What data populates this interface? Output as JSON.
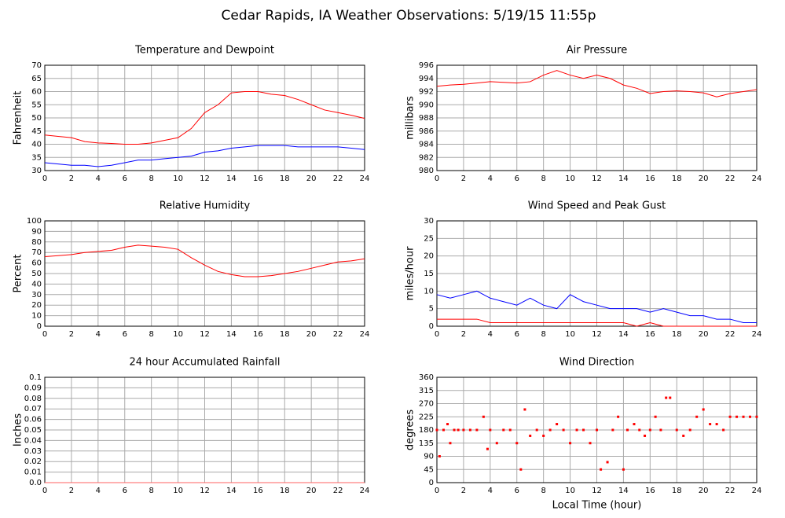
{
  "title": "Cedar Rapids, IA Weather Observations: 5/19/15 11:55p",
  "chart_data": [
    {
      "type": "line",
      "title": "Temperature and Dewpoint",
      "ylabel": "Fahrenheit",
      "grid": true,
      "x": [
        0,
        1,
        2,
        3,
        4,
        5,
        6,
        7,
        8,
        9,
        10,
        11,
        12,
        13,
        14,
        15,
        16,
        17,
        18,
        19,
        20,
        21,
        22,
        23,
        24
      ],
      "series": [
        {
          "color": "#ff0000",
          "values": [
            43.5,
            43,
            42.5,
            41,
            40.5,
            40.3,
            40,
            40,
            40.5,
            41.5,
            42.5,
            46,
            52,
            55,
            59.5,
            60,
            60,
            59,
            58.5,
            57,
            55,
            53,
            52,
            51,
            49.8
          ]
        },
        {
          "color": "#0000ff",
          "values": [
            33,
            32.5,
            32,
            32,
            31.5,
            32,
            33,
            34,
            34,
            34.5,
            35,
            35.5,
            37,
            37.5,
            38.5,
            39,
            39.5,
            39.5,
            39.5,
            39,
            39,
            39,
            39,
            38.5,
            38
          ]
        }
      ],
      "xlim": [
        0,
        24
      ],
      "xticks": [
        0,
        2,
        4,
        6,
        8,
        10,
        12,
        14,
        16,
        18,
        20,
        22,
        24
      ],
      "ylim": [
        30,
        70
      ],
      "yticks": [
        30,
        35,
        40,
        45,
        50,
        55,
        60,
        65,
        70
      ]
    },
    {
      "type": "line",
      "title": "Air Pressure",
      "ylabel": "millibars",
      "grid": true,
      "x": [
        0,
        1,
        2,
        3,
        4,
        5,
        6,
        7,
        8,
        9,
        10,
        11,
        12,
        13,
        14,
        15,
        16,
        17,
        18,
        19,
        20,
        21,
        22,
        23,
        24
      ],
      "series": [
        {
          "color": "#ff0000",
          "values": [
            992.8,
            993,
            993.1,
            993.3,
            993.5,
            993.4,
            993.3,
            993.5,
            994.5,
            995.2,
            994.5,
            994,
            994.5,
            994,
            993,
            992.5,
            991.7,
            992,
            992.1,
            992,
            991.8,
            991.2,
            991.7,
            992,
            992.3
          ]
        }
      ],
      "xlim": [
        0,
        24
      ],
      "xticks": [
        0,
        2,
        4,
        6,
        8,
        10,
        12,
        14,
        16,
        18,
        20,
        22,
        24
      ],
      "ylim": [
        980,
        996
      ],
      "yticks": [
        980,
        982,
        984,
        986,
        988,
        990,
        992,
        994,
        996
      ]
    },
    {
      "type": "line",
      "title": "Relative Humidity",
      "ylabel": "Percent",
      "grid": true,
      "x": [
        0,
        1,
        2,
        3,
        4,
        5,
        6,
        7,
        8,
        9,
        10,
        11,
        12,
        13,
        14,
        15,
        16,
        17,
        18,
        19,
        20,
        21,
        22,
        23,
        24
      ],
      "series": [
        {
          "color": "#ff0000",
          "values": [
            66,
            67,
            68,
            70,
            71,
            72,
            75,
            77,
            76,
            75,
            73,
            65,
            58,
            52,
            49,
            47,
            47,
            48,
            50,
            52,
            55,
            58,
            61,
            62,
            64
          ]
        }
      ],
      "xlim": [
        0,
        24
      ],
      "xticks": [
        0,
        2,
        4,
        6,
        8,
        10,
        12,
        14,
        16,
        18,
        20,
        22,
        24
      ],
      "ylim": [
        0,
        100
      ],
      "yticks": [
        0,
        10,
        20,
        30,
        40,
        50,
        60,
        70,
        80,
        90,
        100
      ]
    },
    {
      "type": "line",
      "title": "Wind Speed and Peak Gust",
      "ylabel": "miles/hour",
      "grid": true,
      "x": [
        0,
        1,
        2,
        3,
        4,
        5,
        6,
        7,
        8,
        9,
        10,
        11,
        12,
        13,
        14,
        15,
        16,
        17,
        18,
        19,
        20,
        21,
        22,
        23,
        24
      ],
      "series": [
        {
          "color": "#0000ff",
          "values": [
            9,
            8,
            9,
            10,
            8,
            7,
            6,
            8,
            6,
            5,
            9,
            7,
            6,
            5,
            5,
            5,
            4,
            5,
            4,
            3,
            3,
            2,
            2,
            1,
            1
          ]
        },
        {
          "color": "#ff0000",
          "values": [
            2,
            2,
            2,
            2,
            1,
            1,
            1,
            1,
            1,
            1,
            1,
            1,
            1,
            1,
            1,
            0,
            1,
            0,
            0,
            0,
            0,
            0,
            0,
            0,
            0
          ]
        }
      ],
      "xlim": [
        0,
        24
      ],
      "xticks": [
        0,
        2,
        4,
        6,
        8,
        10,
        12,
        14,
        16,
        18,
        20,
        22,
        24
      ],
      "ylim": [
        0,
        30
      ],
      "yticks": [
        0,
        5,
        10,
        15,
        20,
        25,
        30
      ]
    },
    {
      "type": "line",
      "title": "24 hour Accumulated Rainfall",
      "ylabel": "Inches",
      "grid": true,
      "x": [
        0,
        1,
        2,
        3,
        4,
        5,
        6,
        7,
        8,
        9,
        10,
        11,
        12,
        13,
        14,
        15,
        16,
        17,
        18,
        19,
        20,
        21,
        22,
        23,
        24
      ],
      "series": [
        {
          "color": "#ff6060",
          "values": [
            0,
            0,
            0,
            0,
            0,
            0,
            0,
            0,
            0,
            0,
            0,
            0,
            0,
            0,
            0,
            0,
            0,
            0,
            0,
            0,
            0,
            0,
            0,
            0,
            0
          ]
        }
      ],
      "xlim": [
        0,
        24
      ],
      "xticks": [
        0,
        2,
        4,
        6,
        8,
        10,
        12,
        14,
        16,
        18,
        20,
        22,
        24
      ],
      "ylim": [
        0,
        0.1
      ],
      "yticks": [
        {
          "value": 0,
          "label": "0.0"
        },
        0.01,
        0.02,
        0.03,
        0.04,
        0.05,
        0.06,
        0.07,
        0.08,
        0.09,
        0.1
      ]
    },
    {
      "type": "scatter",
      "title": "Wind Direction",
      "ylabel": "degrees",
      "xlabel": "Local Time (hour)",
      "grid": true,
      "color": "#ff0000",
      "x": [
        0,
        0.2,
        0.5,
        0.8,
        1,
        1.3,
        1.6,
        2,
        2.5,
        3,
        3.5,
        3.8,
        4,
        4.5,
        5,
        5.5,
        6,
        6.3,
        6.6,
        7,
        7.5,
        8,
        8.5,
        9,
        9.5,
        10,
        10.5,
        11,
        11.5,
        12,
        12.3,
        12.8,
        13.2,
        13.6,
        14,
        14.3,
        14.8,
        15.2,
        15.6,
        16,
        16.4,
        16.8,
        17.2,
        17.5,
        18,
        18.5,
        19,
        19.5,
        20,
        20.5,
        21,
        21.5,
        22,
        22.5,
        23,
        23.5,
        24
      ],
      "values": [
        180,
        90,
        180,
        200,
        135,
        180,
        180,
        180,
        180,
        180,
        225,
        115,
        180,
        135,
        180,
        180,
        135,
        45,
        250,
        160,
        180,
        160,
        180,
        200,
        180,
        135,
        180,
        180,
        135,
        180,
        45,
        70,
        180,
        225,
        45,
        180,
        200,
        180,
        160,
        180,
        225,
        180,
        290,
        290,
        180,
        160,
        180,
        225,
        250,
        200,
        200,
        180,
        225,
        225,
        225,
        225,
        225
      ],
      "xlim": [
        0,
        24
      ],
      "xticks": [
        0,
        2,
        4,
        6,
        8,
        10,
        12,
        14,
        16,
        18,
        20,
        22,
        24
      ],
      "ylim": [
        0,
        360
      ],
      "yticks": [
        0,
        45,
        90,
        135,
        180,
        225,
        270,
        315,
        360
      ]
    }
  ]
}
